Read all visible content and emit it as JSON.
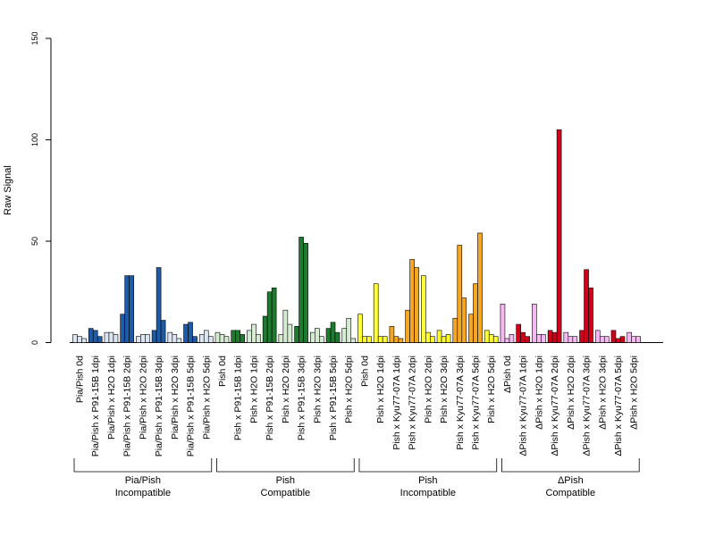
{
  "chart_data": {
    "type": "bar",
    "ylabel": "Raw Signal",
    "ylim": [
      0,
      150
    ],
    "yticks": [
      0,
      50,
      100,
      150
    ],
    "bars_per_category": 3,
    "categories": [
      "Pia/Pish 0d",
      "Pia/Pish x P91-15B 1dpi",
      "Pia/Pish x H2O 1dpi",
      "Pia/Pish x P91-15B 2dpi",
      "Pia/Pish x H2O 2dpi",
      "Pia/Pish x P91-15B 3dpi",
      "Pia/Pish x H2O 3dpi",
      "Pia/Pish x P91-15B 5dpi",
      "Pia/Pish x H2O 5dpi",
      "Pish 0d",
      "Pish x P91-15B 1dpi",
      "Pish x H2O 1dpi",
      "Pish x P91-15B 2dpi",
      "Pish x H2O 2dpi",
      "Pish x P91-15B 3dpi",
      "Pish x H2O 3dpi",
      "Pish x P91-15B 5dpi",
      "Pish x H2O 5dpi",
      "Pish 0d",
      "Pish x H2O 1dpi",
      "Pish x Kyu77-07A 1dpi",
      "Pish x Kyu77-07A 2dpi",
      "Pish x H2O 2dpi",
      "Pish x H2O 3dpi",
      "Pish x Kyu77-07A 3dpi",
      "Pish x Kyu77-07A 5dpi",
      "Pish x H2O 5dpi",
      "ΔPish 0d",
      "ΔPish x Kyu77-07A 1dpi",
      "ΔPish x H2O 1dpi",
      "ΔPish x Kyu77-07A 2dpi",
      "ΔPish x H2O 2dpi",
      "ΔPish x Kyu77-07A 3dpi",
      "ΔPish x H2O 3dpi",
      "ΔPish x Kyu77-07A 5dpi",
      "ΔPish x H2O 5dpi"
    ],
    "values": [
      [
        4,
        3,
        2
      ],
      [
        7,
        6,
        3
      ],
      [
        5,
        5,
        4
      ],
      [
        14,
        33,
        33
      ],
      [
        3,
        4,
        4
      ],
      [
        6,
        37,
        11
      ],
      [
        5,
        4,
        2
      ],
      [
        9,
        10,
        3
      ],
      [
        4,
        6,
        3
      ],
      [
        5,
        4,
        3
      ],
      [
        6,
        6,
        4
      ],
      [
        6,
        9,
        4
      ],
      [
        13,
        25,
        27
      ],
      [
        4,
        16,
        9
      ],
      [
        8,
        52,
        49
      ],
      [
        5,
        7,
        3
      ],
      [
        7,
        10,
        5
      ],
      [
        7,
        12,
        2
      ],
      [
        14,
        3,
        3
      ],
      [
        29,
        3,
        3
      ],
      [
        8,
        3,
        2
      ],
      [
        16,
        41,
        37
      ],
      [
        33,
        5,
        3
      ],
      [
        6,
        3,
        4
      ],
      [
        12,
        48,
        22
      ],
      [
        14,
        29,
        54
      ],
      [
        6,
        4,
        3
      ],
      [
        19,
        2,
        4
      ],
      [
        9,
        5,
        3
      ],
      [
        19,
        4,
        4
      ],
      [
        6,
        5,
        105
      ],
      [
        5,
        3,
        3
      ],
      [
        6,
        36,
        27
      ],
      [
        6,
        3,
        3
      ],
      [
        6,
        2,
        3
      ],
      [
        5,
        3,
        3
      ]
    ],
    "category_colors": [
      "#dce6f2",
      "#1f5aa6",
      "#dce6f2",
      "#1f5aa6",
      "#dce6f2",
      "#1f5aa6",
      "#dce6f2",
      "#1f5aa6",
      "#dce6f2",
      "#d6ecd2",
      "#1e7a2e",
      "#d6ecd2",
      "#1e7a2e",
      "#d6ecd2",
      "#1e7a2e",
      "#d6ecd2",
      "#1e7a2e",
      "#d6ecd2",
      "#ffff33",
      "#ffff33",
      "#f5a623",
      "#f5a623",
      "#ffff33",
      "#ffff33",
      "#f5a623",
      "#f5a623",
      "#ffff33",
      "#f5b8f2",
      "#d0021b",
      "#f5b8f2",
      "#d0021b",
      "#f5b8f2",
      "#d0021b",
      "#f5b8f2",
      "#d0021b",
      "#f5b8f2"
    ],
    "groups": [
      {
        "line1": "Pia/Pish",
        "line2": "Incompatible",
        "start": 0,
        "end": 8
      },
      {
        "line1": "Pish",
        "line2": "Compatible",
        "start": 9,
        "end": 17
      },
      {
        "line1": "Pish",
        "line2": "Incompatible",
        "start": 18,
        "end": 26
      },
      {
        "line1": "ΔPish",
        "line2": "Compatible",
        "start": 27,
        "end": 35
      }
    ]
  }
}
